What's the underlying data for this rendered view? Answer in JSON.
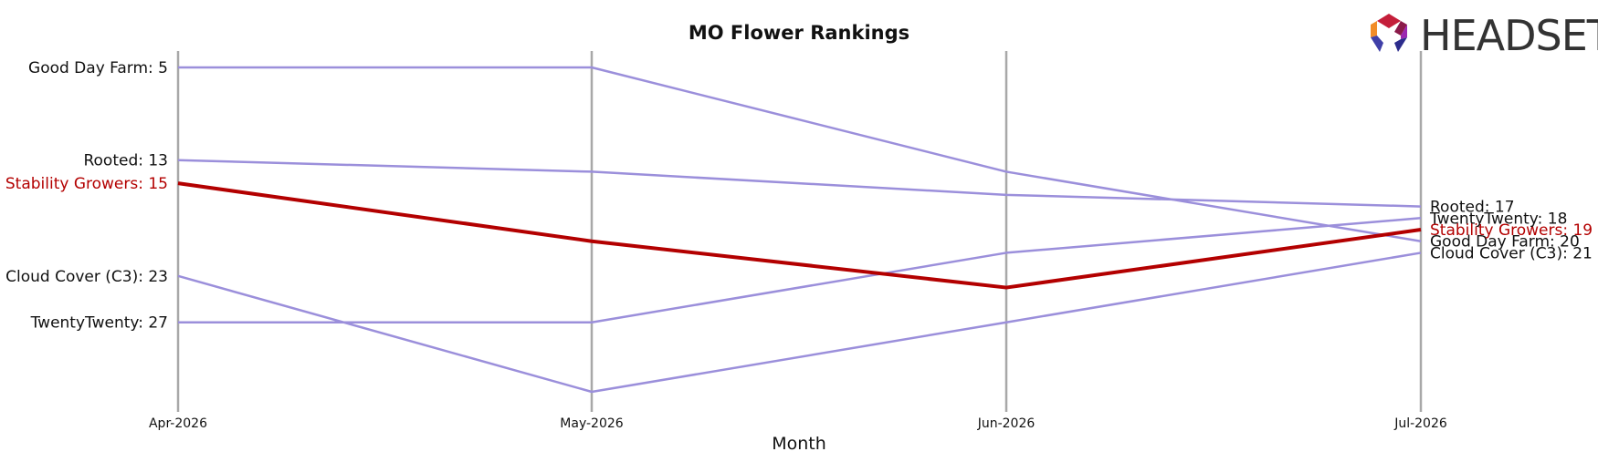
{
  "chart_data": {
    "type": "line",
    "title": "MO Flower Rankings",
    "xlabel": "Month",
    "ylabel": "",
    "x": [
      "Apr-2026",
      "May-2026",
      "Jun-2026",
      "Jul-2026"
    ],
    "y_inverted": true,
    "ylim": [
      35,
      4
    ],
    "grid": "vertical lines at each month",
    "series": [
      {
        "name": "Good Day Farm",
        "values": [
          5,
          5,
          14,
          20
        ],
        "color": "#9b8fdb",
        "highlight": false,
        "start_label": "Good Day Farm: 5",
        "end_label": "Good Day Farm: 20"
      },
      {
        "name": "Rooted",
        "values": [
          13,
          14,
          16,
          17
        ],
        "color": "#9b8fdb",
        "highlight": false,
        "start_label": "Rooted: 13",
        "end_label": "Rooted: 17"
      },
      {
        "name": "Stability Growers",
        "values": [
          15,
          20,
          24,
          19
        ],
        "color": "#b30000",
        "highlight": true,
        "start_label": "Stability Growers: 15",
        "end_label": "Stability Growers: 19"
      },
      {
        "name": "Cloud Cover (C3)",
        "values": [
          23,
          33,
          27,
          21
        ],
        "color": "#9b8fdb",
        "highlight": false,
        "start_label": "Cloud Cover (C3): 23",
        "end_label": "Cloud Cover (C3): 21"
      },
      {
        "name": "TwentyTwenty",
        "values": [
          27,
          27,
          21,
          18
        ],
        "color": "#9b8fdb",
        "highlight": false,
        "start_label": "TwentyTwenty: 27",
        "end_label": "TwentyTwenty: 18"
      }
    ]
  },
  "logo": {
    "text": "HEADSET"
  }
}
